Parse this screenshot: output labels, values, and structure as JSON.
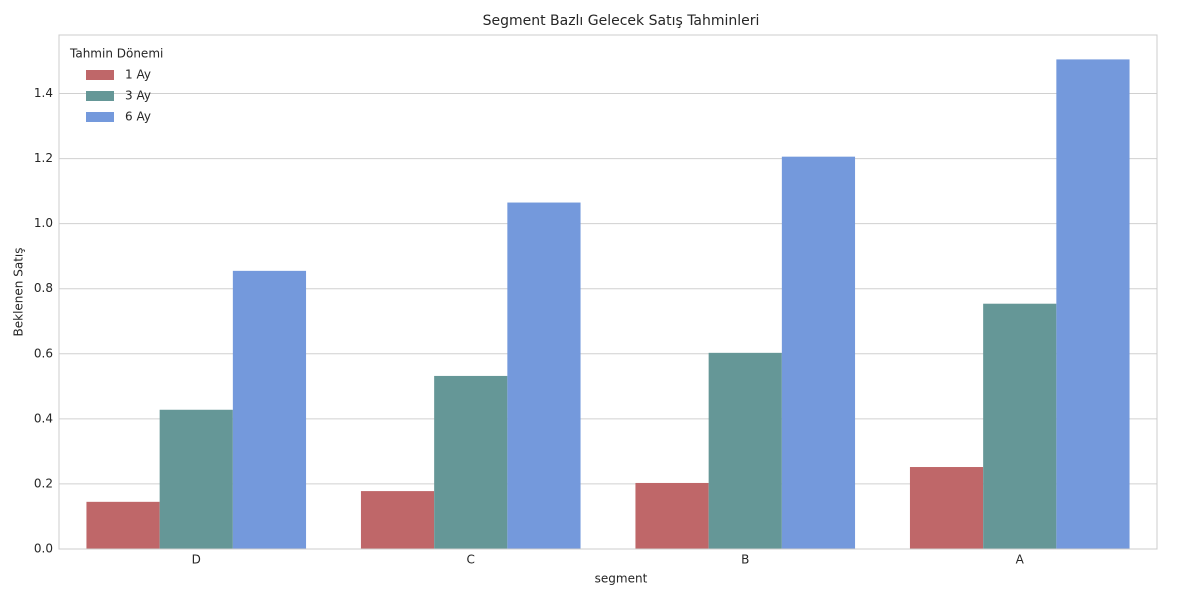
{
  "chart_data": {
    "type": "bar",
    "title": "Segment Bazlı Gelecek Satış Tahminleri",
    "x_label": "segment",
    "y_label": "Beklenen Satış",
    "categories": [
      "D",
      "C",
      "B",
      "A"
    ],
    "series": [
      {
        "name": "1 Ay",
        "color": "#bf6769",
        "values": [
          0.145,
          0.178,
          0.203,
          0.252
        ]
      },
      {
        "name": "3 Ay",
        "color": "#659797",
        "values": [
          0.428,
          0.532,
          0.603,
          0.754
        ]
      },
      {
        "name": "6 Ay",
        "color": "#7499dc",
        "values": [
          0.855,
          1.065,
          1.206,
          1.505
        ]
      }
    ],
    "legend_title": "Tahmin Dönemi",
    "legend": "upper left",
    "ylim": [
      0,
      1.58
    ],
    "yticks": [
      {
        "value": 0,
        "label": "0.0"
      },
      0.2,
      0.4,
      0.6,
      0.8,
      {
        "value": 1,
        "label": "1.0"
      },
      1.2,
      1.4
    ],
    "grid": true
  }
}
